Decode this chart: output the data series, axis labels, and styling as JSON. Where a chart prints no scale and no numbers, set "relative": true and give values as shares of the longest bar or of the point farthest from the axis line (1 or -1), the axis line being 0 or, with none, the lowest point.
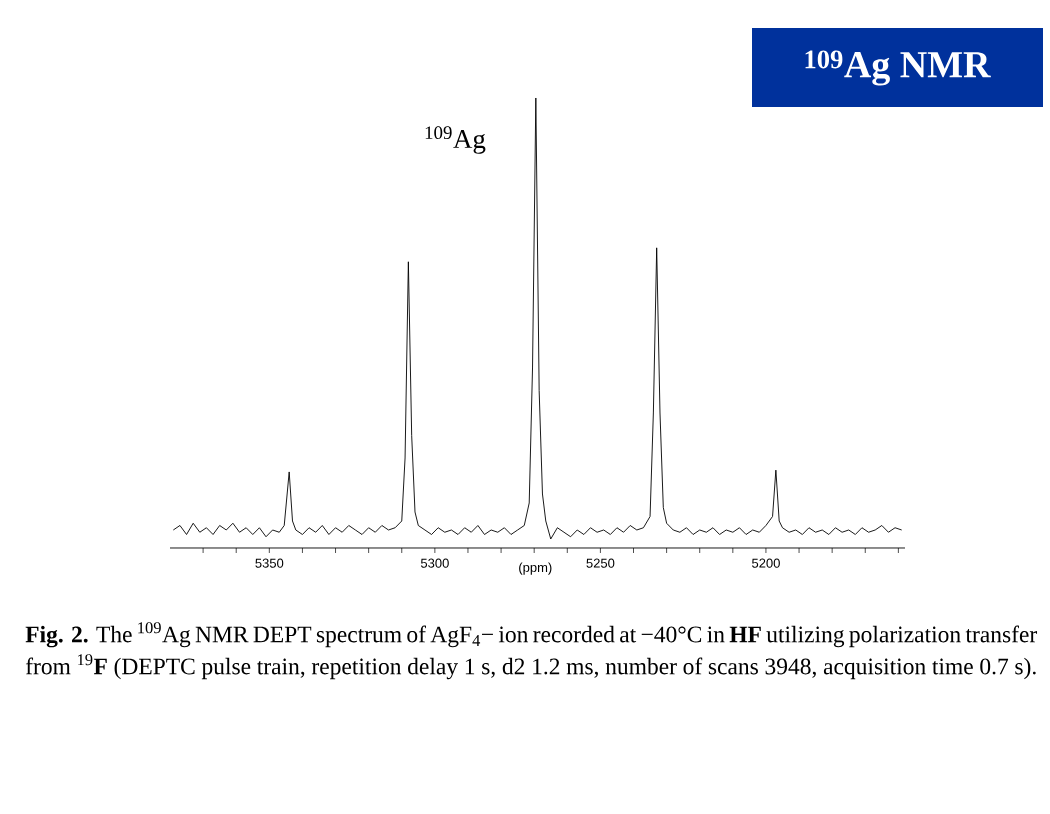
{
  "chart_data": {
    "type": "line",
    "relative": true,
    "title": "$^{109}$Ag NMR",
    "xlabel": "(ppm)",
    "annotations": [
      "$^{109}$Ag",
      "**Fig. 2.** The $^{109}$Ag NMR DEPT spectrum of AgF$_{4}$− ion recorded at −40°C in **HF** utilizing polarization transfer from $^{19}$**F** (DEPTC pulse train, repetition delay 1 s, d2 1.2 ms, number of scans 3948, acquisition time 0.7 s)."
    ],
    "xlim": [
      5380,
      5158
    ],
    "xticks": [
      {
        "value": 5370,
        "label": null
      },
      {
        "value": 5360,
        "label": null
      },
      5350,
      {
        "value": 5340,
        "label": null
      },
      {
        "value": 5330,
        "label": null
      },
      {
        "value": 5320,
        "label": null
      },
      {
        "value": 5310,
        "label": null
      },
      5300,
      {
        "value": 5290,
        "label": null
      },
      {
        "value": 5280,
        "label": null
      },
      {
        "value": 5270,
        "label": null
      },
      {
        "value": 5260,
        "label": null
      },
      5250,
      {
        "value": 5240,
        "label": null
      },
      {
        "value": 5230,
        "label": null
      },
      {
        "value": 5220,
        "label": null
      },
      {
        "value": 5210,
        "label": null
      },
      5200,
      {
        "value": 5190,
        "label": null
      },
      {
        "value": 5180,
        "label": null
      },
      {
        "value": 5170,
        "label": null
      },
      {
        "value": 5160,
        "label": null
      }
    ],
    "x": [
      5379,
      5377,
      5375,
      5373,
      5371,
      5369,
      5367,
      5365,
      5363,
      5361,
      5359,
      5357,
      5355,
      5353,
      5351,
      5349,
      5347,
      5345.5,
      5344,
      5343,
      5342,
      5340,
      5338,
      5336,
      5334,
      5332,
      5330,
      5328,
      5326,
      5324,
      5322,
      5320,
      5318,
      5316,
      5314,
      5312,
      5310,
      5309,
      5308,
      5307,
      5306,
      5305,
      5303,
      5301,
      5299,
      5297,
      5295,
      5293,
      5291,
      5289,
      5287,
      5285,
      5283,
      5281,
      5279,
      5277,
      5275,
      5273,
      5271.5,
      5270.5,
      5269.5,
      5268.5,
      5267.5,
      5266.5,
      5265,
      5263,
      5261,
      5259,
      5257,
      5255,
      5253,
      5251,
      5249,
      5247,
      5245,
      5243,
      5241,
      5239,
      5237,
      5235,
      5234,
      5233,
      5232,
      5231,
      5230,
      5228,
      5226,
      5224,
      5222,
      5220,
      5218,
      5216,
      5214,
      5212,
      5210,
      5208,
      5206,
      5204,
      5202,
      5200,
      5198,
      5197,
      5196,
      5195,
      5193,
      5191,
      5189,
      5187,
      5185,
      5183,
      5181,
      5179,
      5177,
      5175,
      5173,
      5171,
      5169,
      5167,
      5165,
      5163,
      5161,
      5159
    ],
    "series": [
      {
        "color": "#000000",
        "values": [
          0.04,
          0.05,
          0.03,
          0.055,
          0.035,
          0.045,
          0.03,
          0.05,
          0.04,
          0.055,
          0.035,
          0.045,
          0.03,
          0.045,
          0.025,
          0.04,
          0.035,
          0.05,
          0.169,
          0.06,
          0.04,
          0.03,
          0.045,
          0.035,
          0.05,
          0.03,
          0.045,
          0.035,
          0.05,
          0.04,
          0.03,
          0.045,
          0.035,
          0.05,
          0.04,
          0.045,
          0.06,
          0.2,
          0.636,
          0.25,
          0.08,
          0.05,
          0.04,
          0.03,
          0.045,
          0.035,
          0.04,
          0.03,
          0.045,
          0.035,
          0.05,
          0.03,
          0.04,
          0.035,
          0.045,
          0.03,
          0.04,
          0.05,
          0.1,
          0.4,
          1,
          0.35,
          0.12,
          0.06,
          0.02,
          0.045,
          0.035,
          0.025,
          0.04,
          0.03,
          0.045,
          0.035,
          0.04,
          0.03,
          0.045,
          0.035,
          0.05,
          0.04,
          0.045,
          0.07,
          0.3,
          0.667,
          0.3,
          0.09,
          0.055,
          0.04,
          0.035,
          0.045,
          0.03,
          0.04,
          0.035,
          0.045,
          0.03,
          0.04,
          0.035,
          0.045,
          0.03,
          0.04,
          0.035,
          0.05,
          0.07,
          0.173,
          0.06,
          0.045,
          0.035,
          0.04,
          0.03,
          0.045,
          0.035,
          0.04,
          0.03,
          0.045,
          0.035,
          0.04,
          0.03,
          0.045,
          0.035,
          0.04,
          0.05,
          0.035,
          0.045,
          0.04
        ]
      }
    ]
  }
}
